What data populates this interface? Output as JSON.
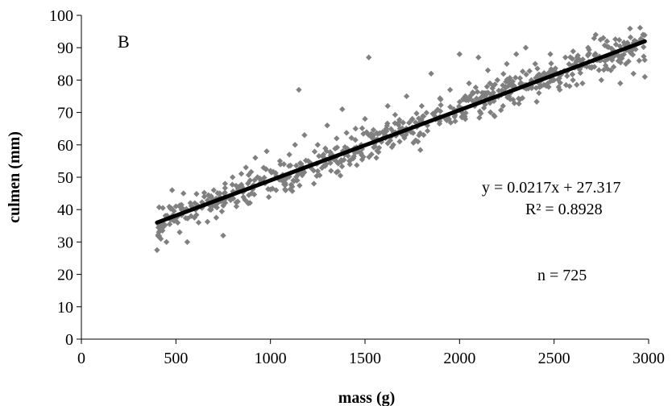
{
  "chart_data": {
    "type": "scatter",
    "title": "",
    "panel_label": "B",
    "xlabel": "mass (g)",
    "ylabel": "culmen (mm)",
    "xlim": [
      0,
      3000
    ],
    "ylim": [
      0,
      100
    ],
    "x_ticks": [
      0,
      500,
      1000,
      1500,
      2000,
      2500,
      3000
    ],
    "y_ticks": [
      0,
      10,
      20,
      30,
      40,
      50,
      60,
      70,
      80,
      90,
      100
    ],
    "grid": false,
    "legend": "none",
    "point_color": "#808080",
    "trendline": {
      "slope": 0.0217,
      "intercept": 27.317,
      "x_range": [
        400,
        2980
      ],
      "equation": "y = 0.0217x + 27.317",
      "r_squared": "R² = 0.8928",
      "color": "#000000"
    },
    "sample_size_label": "n = 725",
    "points_sample": [
      [
        400,
        27.5
      ],
      [
        410,
        33
      ],
      [
        420,
        31
      ],
      [
        430,
        35
      ],
      [
        450,
        30
      ],
      [
        470,
        37
      ],
      [
        480,
        46
      ],
      [
        500,
        41
      ],
      [
        520,
        33
      ],
      [
        540,
        45
      ],
      [
        560,
        30
      ],
      [
        580,
        38
      ],
      [
        600,
        42
      ],
      [
        620,
        36
      ],
      [
        650,
        44
      ],
      [
        680,
        40
      ],
      [
        700,
        46
      ],
      [
        720,
        42
      ],
      [
        750,
        32
      ],
      [
        760,
        48
      ],
      [
        780,
        44
      ],
      [
        800,
        50
      ],
      [
        820,
        41
      ],
      [
        850,
        47
      ],
      [
        870,
        53
      ],
      [
        900,
        45
      ],
      [
        920,
        56
      ],
      [
        950,
        49
      ],
      [
        980,
        58
      ],
      [
        1000,
        52
      ],
      [
        1030,
        46
      ],
      [
        1050,
        55
      ],
      [
        1080,
        50
      ],
      [
        1100,
        57
      ],
      [
        1130,
        60
      ],
      [
        1150,
        77
      ],
      [
        1160,
        53
      ],
      [
        1180,
        63
      ],
      [
        1200,
        55
      ],
      [
        1230,
        48
      ],
      [
        1250,
        60
      ],
      [
        1280,
        57
      ],
      [
        1300,
        66
      ],
      [
        1320,
        52
      ],
      [
        1350,
        62
      ],
      [
        1380,
        71
      ],
      [
        1400,
        58
      ],
      [
        1420,
        54
      ],
      [
        1450,
        65
      ],
      [
        1480,
        60
      ],
      [
        1500,
        68
      ],
      [
        1520,
        87
      ],
      [
        1540,
        62
      ],
      [
        1560,
        56
      ],
      [
        1600,
        64
      ],
      [
        1620,
        72
      ],
      [
        1650,
        60
      ],
      [
        1680,
        67
      ],
      [
        1700,
        63
      ],
      [
        1720,
        75
      ],
      [
        1750,
        68
      ],
      [
        1780,
        61
      ],
      [
        1800,
        72
      ],
      [
        1830,
        66
      ],
      [
        1850,
        82
      ],
      [
        1870,
        70
      ],
      [
        1900,
        74
      ],
      [
        1930,
        68
      ],
      [
        1950,
        77
      ],
      [
        1970,
        71
      ],
      [
        2000,
        88
      ],
      [
        2020,
        74
      ],
      [
        2050,
        79
      ],
      [
        2080,
        72
      ],
      [
        2100,
        87
      ],
      [
        2130,
        76
      ],
      [
        2150,
        83
      ],
      [
        2180,
        75
      ],
      [
        2200,
        80
      ],
      [
        2230,
        72
      ],
      [
        2250,
        85
      ],
      [
        2280,
        78
      ],
      [
        2300,
        88
      ],
      [
        2320,
        74
      ],
      [
        2350,
        90
      ],
      [
        2380,
        80
      ],
      [
        2400,
        85
      ],
      [
        2420,
        76
      ],
      [
        2450,
        82
      ],
      [
        2480,
        88
      ],
      [
        2500,
        83
      ],
      [
        2530,
        77
      ],
      [
        2560,
        87
      ],
      [
        2600,
        80
      ],
      [
        2620,
        86
      ],
      [
        2650,
        79
      ],
      [
        2680,
        90
      ],
      [
        2700,
        84
      ],
      [
        2720,
        94
      ],
      [
        2750,
        80
      ],
      [
        2780,
        92
      ],
      [
        2800,
        83
      ],
      [
        2830,
        88
      ],
      [
        2850,
        79
      ],
      [
        2880,
        85
      ],
      [
        2900,
        90
      ],
      [
        2920,
        82
      ],
      [
        2950,
        86
      ],
      [
        2970,
        94
      ],
      [
        2980,
        81
      ]
    ]
  }
}
